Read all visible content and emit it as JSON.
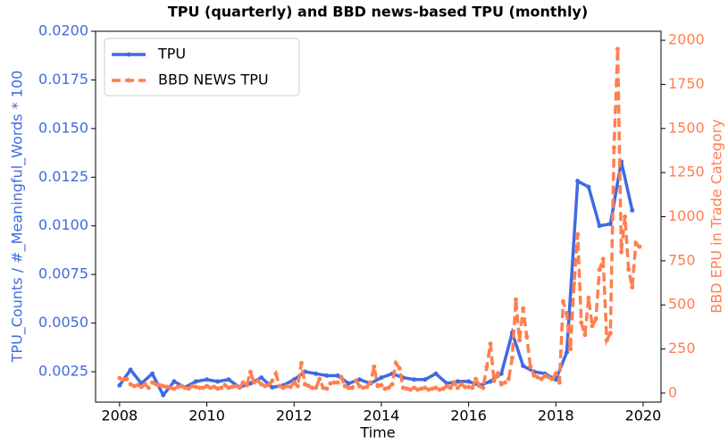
{
  "chart_data": {
    "type": "line",
    "title": "TPU (quarterly) and BBD news-based TPU (monthly)",
    "xlabel": "Time",
    "ylabel": "TPU_Counts / #_Meaningful_Words * 100",
    "y2label": "BBD EPU in Trade Category",
    "xlim": [
      2007.45,
      2020.41
    ],
    "xticks": [
      2008,
      2010,
      2012,
      2014,
      2016,
      2018,
      2020
    ],
    "ylim": [
      0.00094,
      0.02
    ],
    "yticks": [
      0.0025,
      {
        "value": 0.005,
        "label": "0.0050"
      },
      0.0075,
      {
        "value": 0.01,
        "label": "0.0100"
      },
      0.0125,
      {
        "value": 0.015,
        "label": "0.0150"
      },
      0.0175,
      {
        "value": 0.02,
        "label": "0.0200"
      }
    ],
    "y2lim": [
      -51,
      2051
    ],
    "y2ticks": [
      0,
      250,
      500,
      750,
      1000,
      1250,
      1500,
      1750,
      2000
    ],
    "legend": "upper left",
    "series": [
      {
        "name": "TPU",
        "color": "#4169e1",
        "dashed": false,
        "x": [
          2008,
          2008.25,
          2008.5,
          2008.75,
          2009,
          2009.25,
          2009.5,
          2009.75,
          2010,
          2010.25,
          2010.5,
          2010.75,
          2011,
          2011.25,
          2011.5,
          2011.75,
          2012,
          2012.25,
          2012.5,
          2012.75,
          2013,
          2013.25,
          2013.5,
          2013.75,
          2014,
          2014.25,
          2014.5,
          2014.75,
          2015,
          2015.25,
          2015.5,
          2015.75,
          2016,
          2016.25,
          2016.5,
          2016.75,
          2017,
          2017.25,
          2017.5,
          2017.75,
          2018,
          2018.25,
          2018.5,
          2018.75,
          2019,
          2019.25,
          2019.5,
          2019.75
        ],
        "values": [
          0.0018,
          0.0026,
          0.0019,
          0.0024,
          0.0013,
          0.002,
          0.0017,
          0.002,
          0.0021,
          0.002,
          0.0021,
          0.0017,
          0.0019,
          0.0022,
          0.0017,
          0.0018,
          0.0021,
          0.0025,
          0.0024,
          0.0023,
          0.0023,
          0.0019,
          0.0021,
          0.0019,
          0.0022,
          0.0024,
          0.0022,
          0.0021,
          0.0021,
          0.0024,
          0.0019,
          0.002,
          0.002,
          0.0018,
          0.002,
          0.0024,
          0.0045,
          0.0028,
          0.0025,
          0.0024,
          0.0021,
          0.0035,
          0.0123,
          0.012,
          0.01,
          0.0101,
          0.0133,
          0.0108
        ]
      },
      {
        "name": "BBD NEWS TPU",
        "color": "#ff7f50",
        "dashed": true,
        "axis": "y2",
        "x": [
          2008,
          2008.083,
          2008.167,
          2008.25,
          2008.333,
          2008.417,
          2008.5,
          2008.583,
          2008.667,
          2008.75,
          2008.833,
          2008.917,
          2009,
          2009.083,
          2009.167,
          2009.25,
          2009.333,
          2009.417,
          2009.5,
          2009.583,
          2009.667,
          2009.75,
          2009.833,
          2009.917,
          2010,
          2010.083,
          2010.167,
          2010.25,
          2010.333,
          2010.417,
          2010.5,
          2010.583,
          2010.667,
          2010.75,
          2010.833,
          2010.917,
          2011,
          2011.083,
          2011.167,
          2011.25,
          2011.333,
          2011.417,
          2011.5,
          2011.583,
          2011.667,
          2011.75,
          2011.833,
          2011.917,
          2012,
          2012.083,
          2012.167,
          2012.25,
          2012.333,
          2012.417,
          2012.5,
          2012.583,
          2012.667,
          2012.75,
          2012.833,
          2012.917,
          2013,
          2013.083,
          2013.167,
          2013.25,
          2013.333,
          2013.417,
          2013.5,
          2013.583,
          2013.667,
          2013.75,
          2013.833,
          2013.917,
          2014,
          2014.083,
          2014.167,
          2014.25,
          2014.333,
          2014.417,
          2014.5,
          2014.583,
          2014.667,
          2014.75,
          2014.833,
          2014.917,
          2015,
          2015.083,
          2015.167,
          2015.25,
          2015.333,
          2015.417,
          2015.5,
          2015.583,
          2015.667,
          2015.75,
          2015.833,
          2015.917,
          2016,
          2016.083,
          2016.167,
          2016.25,
          2016.333,
          2016.417,
          2016.5,
          2016.583,
          2016.667,
          2016.75,
          2016.833,
          2016.917,
          2017,
          2017.083,
          2017.167,
          2017.25,
          2017.333,
          2017.417,
          2017.5,
          2017.583,
          2017.667,
          2017.75,
          2017.833,
          2017.917,
          2018,
          2018.083,
          2018.167,
          2018.25,
          2018.333,
          2018.417,
          2018.5,
          2018.583,
          2018.667,
          2018.75,
          2018.833,
          2018.917,
          2019,
          2019.083,
          2019.167,
          2019.25,
          2019.333,
          2019.417,
          2019.5,
          2019.583,
          2019.667,
          2019.75,
          2019.833,
          2019.917
        ],
        "values": [
          85,
          75,
          80,
          50,
          40,
          45,
          35,
          50,
          30,
          60,
          50,
          45,
          40,
          35,
          30,
          25,
          35,
          40,
          30,
          25,
          40,
          35,
          30,
          30,
          40,
          30,
          35,
          25,
          30,
          45,
          30,
          35,
          40,
          30,
          60,
          45,
          120,
          60,
          70,
          50,
          40,
          45,
          70,
          110,
          40,
          30,
          40,
          35,
          60,
          40,
          170,
          50,
          40,
          30,
          30,
          80,
          30,
          25,
          55,
          60,
          60,
          90,
          40,
          30,
          30,
          70,
          40,
          30,
          35,
          60,
          150,
          40,
          45,
          25,
          30,
          50,
          170,
          140,
          30,
          25,
          20,
          30,
          20,
          25,
          30,
          20,
          25,
          30,
          20,
          25,
          40,
          30,
          60,
          30,
          50,
          35,
          35,
          30,
          80,
          40,
          30,
          150,
          280,
          70,
          110,
          50,
          60,
          80,
          200,
          530,
          300,
          480,
          320,
          150,
          100,
          90,
          80,
          100,
          90,
          80,
          110,
          60,
          520,
          450,
          250,
          620,
          900,
          400,
          330,
          540,
          380,
          420,
          700,
          760,
          300,
          340,
          1390,
          1950,
          800,
          1000,
          700,
          600,
          850,
          830
        ]
      }
    ]
  }
}
